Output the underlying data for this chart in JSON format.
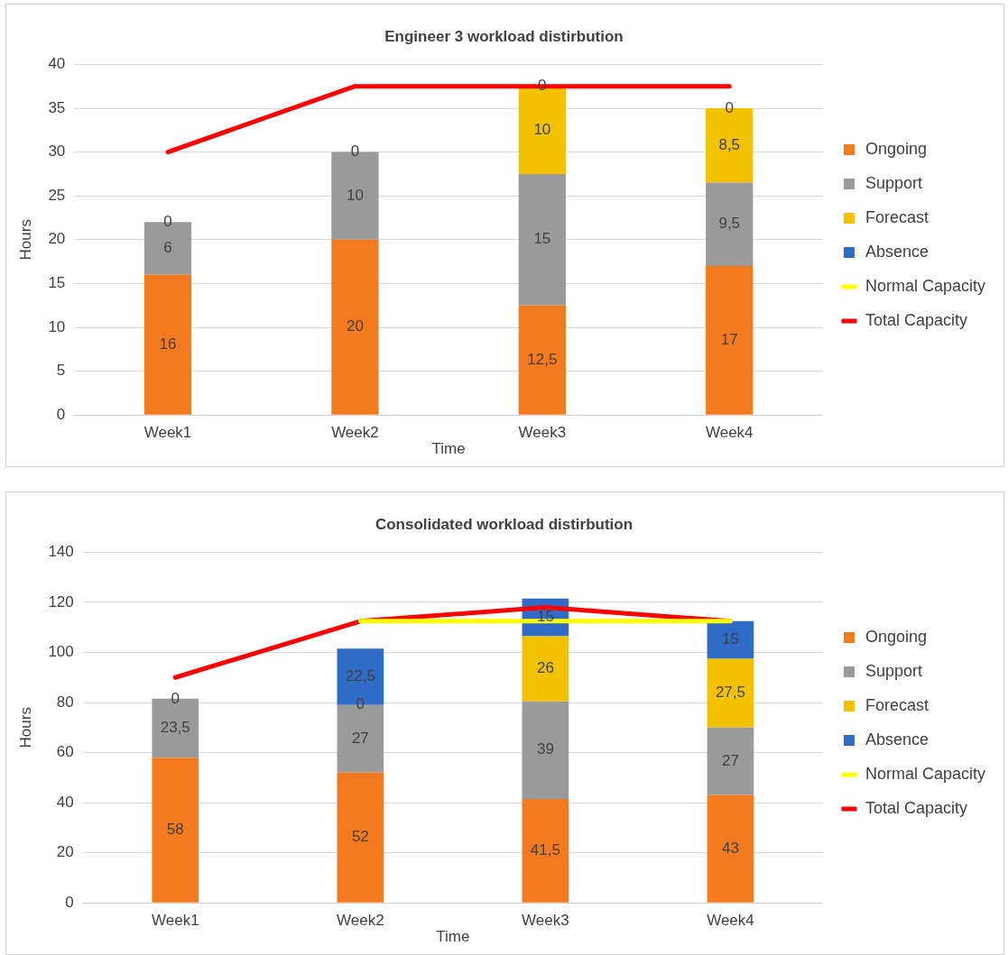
{
  "chart_data": [
    {
      "type": "bar",
      "title": "Engineer 3 workload distirbution",
      "xlabel": "Time",
      "ylabel": "Hours",
      "categories": [
        "Week1",
        "Week2",
        "Week3",
        "Week4"
      ],
      "stacked": true,
      "ylim": [
        0,
        40
      ],
      "yticks": [
        0,
        5,
        10,
        15,
        20,
        25,
        30,
        35,
        40
      ],
      "grid": "y",
      "legend": "right",
      "series": [
        {
          "name": "Ongoing",
          "color": "#f47a20",
          "values": [
            16,
            20,
            12.5,
            17
          ],
          "value_labels": [
            "16",
            "20",
            "12,5",
            "17"
          ]
        },
        {
          "name": "Support",
          "color": "#9a9a9a",
          "values": [
            6,
            10,
            15,
            9.5
          ],
          "value_labels": [
            "6",
            "10",
            "15",
            "9,5"
          ]
        },
        {
          "name": "Forecast",
          "color": "#f2c200",
          "values": [
            0,
            0,
            10,
            8.5
          ],
          "value_labels": [
            "0",
            "0",
            "10",
            "8,5"
          ]
        },
        {
          "name": "Absence",
          "color": "#2f6cc8",
          "values": [
            0,
            0,
            0,
            0
          ],
          "value_labels": [
            null,
            null,
            "0",
            "0"
          ]
        },
        {
          "name": "Normal Capacity",
          "type": "line",
          "color": "#ffff00",
          "values": [
            null,
            null,
            null,
            null
          ]
        },
        {
          "name": "Total Capacity",
          "type": "line",
          "color": "#ff0000",
          "values": [
            30,
            37.5,
            37.5,
            37.5
          ]
        }
      ]
    },
    {
      "type": "bar",
      "title": "Consolidated workload distirbution",
      "xlabel": "Time",
      "ylabel": "Hours",
      "categories": [
        "Week1",
        "Week2",
        "Week3",
        "Week4"
      ],
      "stacked": true,
      "ylim": [
        0,
        140
      ],
      "yticks": [
        0,
        20,
        40,
        60,
        80,
        100,
        120,
        140
      ],
      "grid": "y",
      "legend": "right",
      "series": [
        {
          "name": "Ongoing",
          "color": "#f47a20",
          "values": [
            58,
            52,
            41.5,
            43
          ],
          "value_labels": [
            "58",
            "52",
            "41,5",
            "43"
          ]
        },
        {
          "name": "Support",
          "color": "#9a9a9a",
          "values": [
            23.5,
            27,
            39,
            27
          ],
          "value_labels": [
            "23,5",
            "27",
            "39",
            "27"
          ]
        },
        {
          "name": "Forecast",
          "color": "#f2c200",
          "values": [
            0,
            0,
            26,
            27.5
          ],
          "value_labels": [
            "0",
            "0",
            "26",
            "27,5"
          ]
        },
        {
          "name": "Absence",
          "color": "#2f6cc8",
          "values": [
            0,
            22.5,
            15,
            15
          ],
          "value_labels": [
            null,
            "22,5",
            "15",
            "15"
          ]
        },
        {
          "name": "Normal Capacity",
          "type": "line",
          "color": "#ffff00",
          "values": [
            null,
            112.5,
            112.5,
            112.5
          ]
        },
        {
          "name": "Total Capacity",
          "type": "line",
          "color": "#ff0000",
          "values": [
            90,
            112.5,
            118,
            112.5
          ]
        }
      ]
    }
  ]
}
